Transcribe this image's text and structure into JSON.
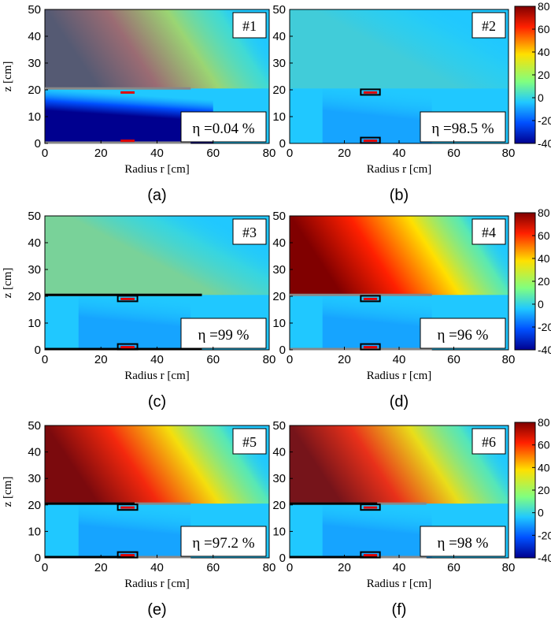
{
  "figure": {
    "x_axis_label": "Radius r [cm]",
    "y_axis_label": "z [cm]",
    "x_ticks": [
      "0",
      "20",
      "40",
      "60",
      "80"
    ],
    "y_ticks": [
      "0",
      "10",
      "20",
      "30",
      "40",
      "50"
    ],
    "colorbar_ticks": [
      "80",
      "60",
      "40",
      "20",
      "0",
      "-20",
      "-40"
    ],
    "colorbar_range": [
      -40,
      80
    ],
    "eta_symbol": "η",
    "colors": {
      "blue_dark": "#00008f",
      "blue": "#0050ff",
      "cyan": "#20c8ff",
      "green": "#80ff80",
      "yellow": "#ffe000",
      "red": "#ff2000",
      "red_dark": "#800000"
    }
  },
  "panels": [
    {
      "id": "a",
      "caption": "(a)",
      "tag": "#1",
      "eta": "η =0.04 %",
      "field_level": 0.2,
      "field_sign": -1
    },
    {
      "id": "b",
      "caption": "(b)",
      "tag": "#2",
      "eta": "η =98.5 %",
      "field_level": 0.05,
      "field_sign": 1
    },
    {
      "id": "c",
      "caption": "(c)",
      "tag": "#3",
      "eta": "η =99 %",
      "field_level": 0.3,
      "field_sign": 1
    },
    {
      "id": "d",
      "caption": "(d)",
      "tag": "#4",
      "eta": "η =96 %",
      "field_level": 1.0,
      "field_sign": 1
    },
    {
      "id": "e",
      "caption": "(e)",
      "tag": "#5",
      "eta": "η =97.2 %",
      "field_level": 0.85,
      "field_sign": 1
    },
    {
      "id": "f",
      "caption": "(f)",
      "tag": "#6",
      "eta": "η =98 %",
      "field_level": 0.8,
      "field_sign": 1
    }
  ]
}
